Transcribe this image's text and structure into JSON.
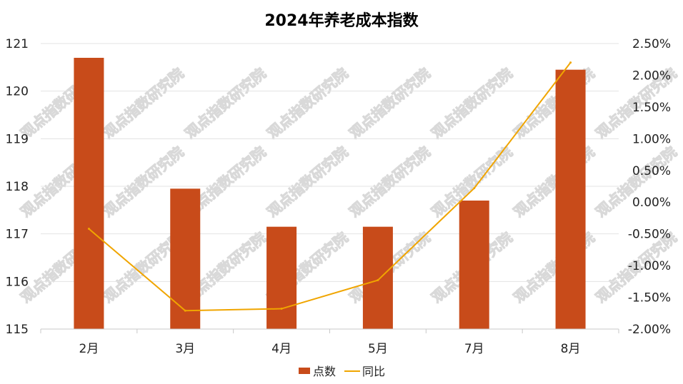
{
  "chart_data": {
    "type": "bar",
    "title": "2024年养老成本指数",
    "categories": [
      "2月",
      "3月",
      "4月",
      "5月",
      "7月",
      "8月"
    ],
    "series": [
      {
        "name": "点数",
        "type": "bar",
        "axis": "left",
        "color": "#C84B1A",
        "values": [
          120.7,
          117.95,
          117.15,
          117.15,
          117.7,
          120.45
        ]
      },
      {
        "name": "同比",
        "type": "line",
        "axis": "right",
        "color": "#F0A500",
        "values": [
          -0.42,
          -1.71,
          -1.68,
          -1.23,
          0.22,
          2.2
        ]
      }
    ],
    "y_left": {
      "min": 115,
      "max": 121,
      "step": 1,
      "tick_labels": [
        "115",
        "116",
        "117",
        "118",
        "119",
        "120",
        "121"
      ]
    },
    "y_right": {
      "min": -2.0,
      "max": 2.5,
      "step": 0.5,
      "tick_labels": [
        "-2.00%",
        "-1.50%",
        "-1.00%",
        "-0.50%",
        "0.00%",
        "0.50%",
        "1.00%",
        "1.50%",
        "2.00%",
        "2.50%"
      ]
    },
    "grid": true,
    "legend_position": "bottom",
    "watermark": "观点指数研究院"
  }
}
